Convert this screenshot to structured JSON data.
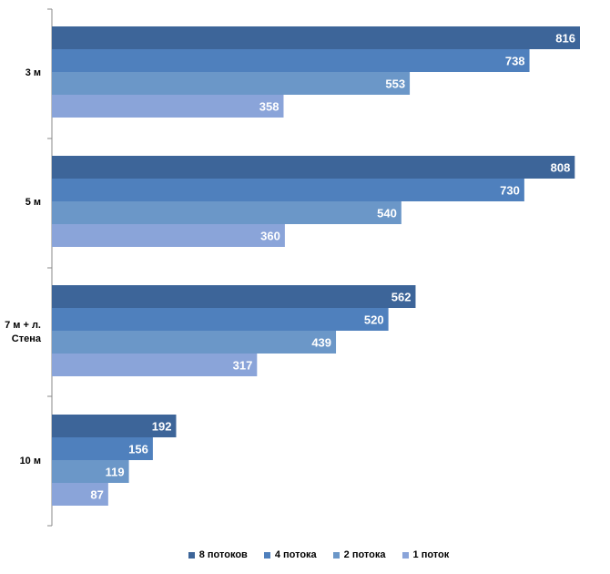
{
  "chart_data": {
    "type": "bar",
    "orientation": "horizontal",
    "categories": [
      "3 м",
      "5 м",
      "7 м + л. Стена",
      "10 м"
    ],
    "category_lines": [
      [
        "3 м"
      ],
      [
        "5 м"
      ],
      [
        "7 м + л.",
        "Стена"
      ],
      [
        "10 м"
      ]
    ],
    "series": [
      {
        "name": "8 потоков",
        "color": "#3d6599",
        "values": [
          816,
          808,
          562,
          192
        ]
      },
      {
        "name": "4 потока",
        "color": "#4f80bd",
        "values": [
          738,
          730,
          520,
          156
        ]
      },
      {
        "name": "2 потока",
        "color": "#6b97c8",
        "values": [
          553,
          540,
          439,
          119
        ]
      },
      {
        "name": "1 поток",
        "color": "#8aa4d9",
        "values": [
          358,
          360,
          317,
          87
        ]
      }
    ],
    "xlim": [
      0,
      816
    ],
    "legend_position": "bottom",
    "grid": false
  }
}
